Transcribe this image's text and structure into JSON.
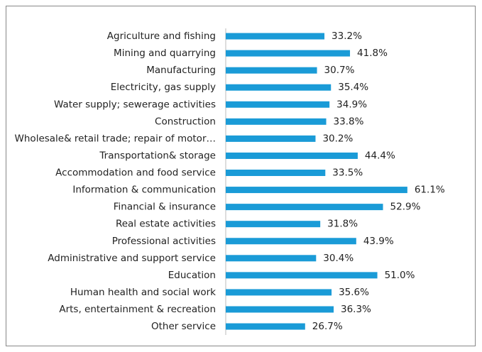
{
  "chart_data": {
    "type": "hbar",
    "categories": [
      "Agriculture and fishing",
      "Mining and quarrying",
      "Manufacturing",
      "Electricity, gas supply",
      "Water supply; sewerage activities",
      "Construction",
      "Wholesale& retail trade; repair of motor…",
      "Transportation& storage",
      "Accommodation and food service",
      "Information & communication",
      "Financial & insurance",
      "Real estate activities",
      "Professional activities",
      "Administrative and support service",
      "Education",
      "Human health and social work",
      "Arts, entertainment & recreation",
      "Other service"
    ],
    "values": [
      33.2,
      41.8,
      30.7,
      35.4,
      34.9,
      33.8,
      30.2,
      44.4,
      33.5,
      61.1,
      52.9,
      31.8,
      43.9,
      30.4,
      51.0,
      35.6,
      36.3,
      26.7
    ],
    "value_labels": [
      "33.2%",
      "41.8%",
      "30.7%",
      "35.4%",
      "34.9%",
      "33.8%",
      "30.2%",
      "44.4%",
      "33.5%",
      "61.1%",
      "52.9%",
      "31.8%",
      "43.9%",
      "30.4%",
      "51.0%",
      "35.6%",
      "36.3%",
      "26.7%"
    ],
    "color": "#1a9bd7",
    "xlim": [
      0,
      80
    ]
  }
}
